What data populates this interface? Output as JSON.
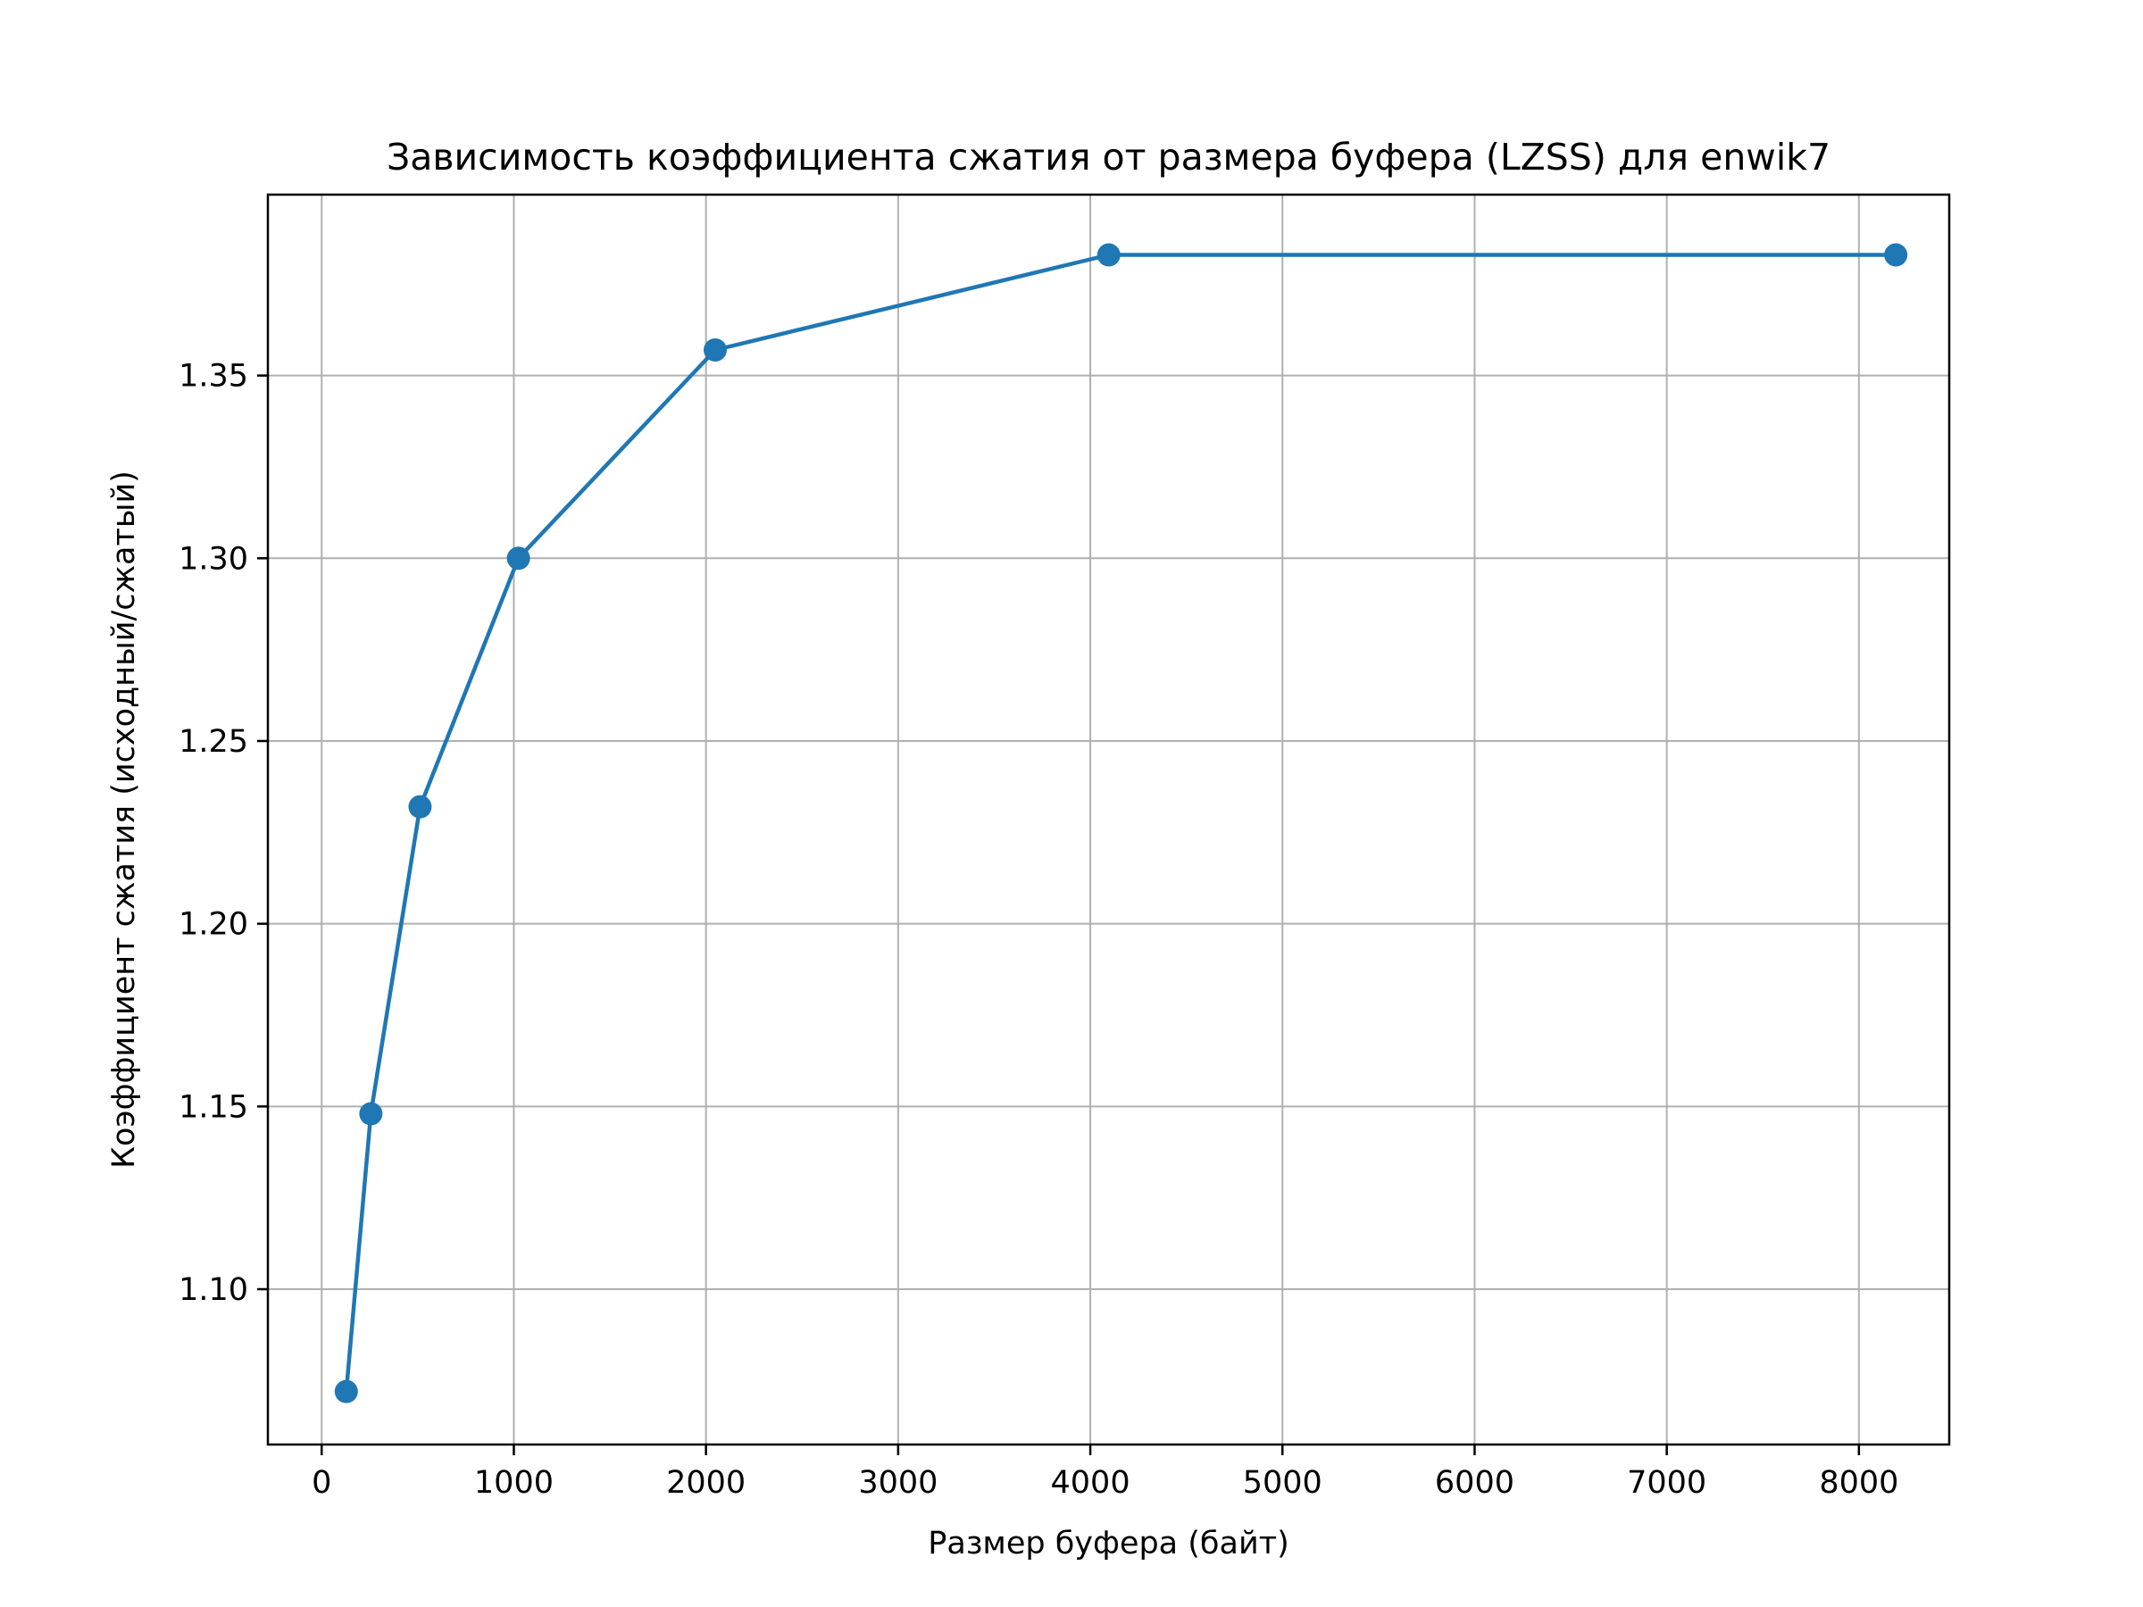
{
  "chart_data": {
    "type": "line",
    "title": "Зависимость коэффициента сжатия от размера буфера (LZSS) для enwik7",
    "xlabel": "Размер буфера (байт)",
    "ylabel": "Коэффициент сжатия (исходный/сжатый)",
    "xlim": [
      -280,
      8470
    ],
    "ylim": [
      1.0575,
      1.3995
    ],
    "xticks": [
      0,
      1000,
      2000,
      3000,
      4000,
      5000,
      6000,
      7000,
      8000
    ],
    "xtick_labels": [
      "0",
      "1000",
      "2000",
      "3000",
      "4000",
      "5000",
      "6000",
      "7000",
      "8000"
    ],
    "yticks": [
      1.1,
      1.15,
      1.2,
      1.25,
      1.3,
      1.35
    ],
    "ytick_labels": [
      "1.10",
      "1.15",
      "1.20",
      "1.25",
      "1.30",
      "1.35"
    ],
    "grid": true,
    "series": [
      {
        "color": "#1f77b4",
        "marker": "circle",
        "x": [
          128,
          256,
          512,
          1024,
          2048,
          4096,
          8192
        ],
        "y": [
          1.072,
          1.148,
          1.232,
          1.3,
          1.357,
          1.383,
          1.383
        ]
      }
    ]
  }
}
